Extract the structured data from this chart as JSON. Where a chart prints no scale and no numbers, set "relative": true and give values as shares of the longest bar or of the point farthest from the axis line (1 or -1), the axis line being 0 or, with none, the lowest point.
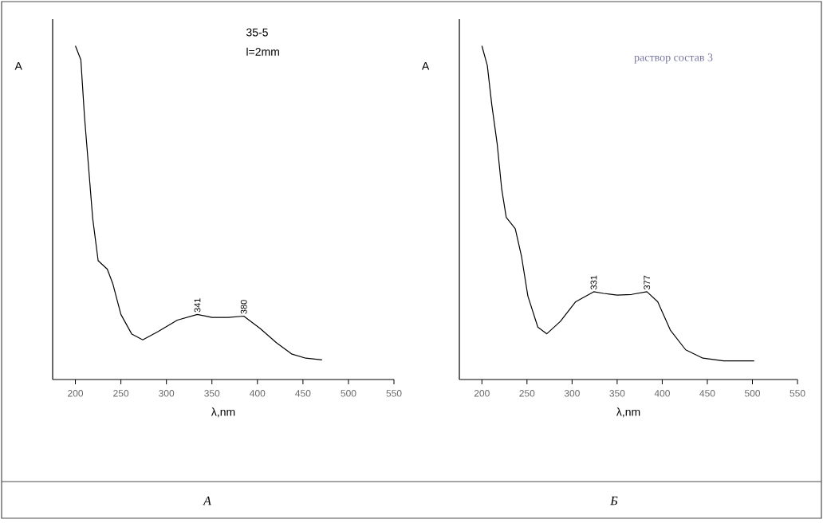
{
  "chart_data": [
    {
      "type": "line",
      "title": "35-5",
      "subtitle": "l=2mm",
      "xlabel": "λ,nm",
      "ylabel": "A",
      "relative": true,
      "xlim": [
        175,
        550
      ],
      "xticks": [
        200,
        250,
        300,
        350,
        400,
        450,
        500,
        550
      ],
      "grid": false,
      "marker": "none",
      "line_style": "solid",
      "series": [
        {
          "color": "#000000",
          "x": [
            200,
            206,
            210,
            215,
            219,
            225,
            235,
            241,
            250,
            262,
            274,
            291,
            312,
            334,
            350,
            368,
            385,
            403,
            421,
            438,
            453,
            471
          ],
          "values": [
            1.0,
            0.958,
            0.788,
            0.619,
            0.483,
            0.356,
            0.331,
            0.288,
            0.195,
            0.136,
            0.119,
            0.144,
            0.178,
            0.195,
            0.186,
            0.186,
            0.19,
            0.153,
            0.11,
            0.076,
            0.064,
            0.059
          ]
        }
      ],
      "annotations": [
        {
          "text": "341",
          "x": 334,
          "y": 0.195
        },
        {
          "text": "380",
          "x": 385,
          "y": 0.19
        },
        "А"
      ]
    },
    {
      "type": "line",
      "title": "раствор состав 3",
      "xlabel": "λ,nm",
      "ylabel": "A",
      "relative": true,
      "xlim": [
        175,
        550
      ],
      "xticks": [
        200,
        250,
        300,
        350,
        400,
        450,
        500,
        550
      ],
      "grid": false,
      "marker": "none",
      "line_style": "solid",
      "series": [
        {
          "color": "#000000",
          "x": [
            200,
            206,
            211,
            217,
            222,
            227,
            237,
            244,
            251,
            262,
            272,
            287,
            304,
            324,
            335,
            350,
            366,
            383,
            395,
            409,
            426,
            445,
            468,
            502
          ],
          "values": [
            1.0,
            0.941,
            0.823,
            0.705,
            0.57,
            0.486,
            0.452,
            0.368,
            0.25,
            0.157,
            0.137,
            0.174,
            0.233,
            0.263,
            0.258,
            0.253,
            0.255,
            0.263,
            0.233,
            0.148,
            0.089,
            0.064,
            0.056,
            0.056
          ]
        }
      ],
      "annotations": [
        {
          "text": "331",
          "x": 324,
          "y": 0.263
        },
        {
          "text": "377",
          "x": 383,
          "y": 0.263
        },
        "Б"
      ]
    }
  ]
}
